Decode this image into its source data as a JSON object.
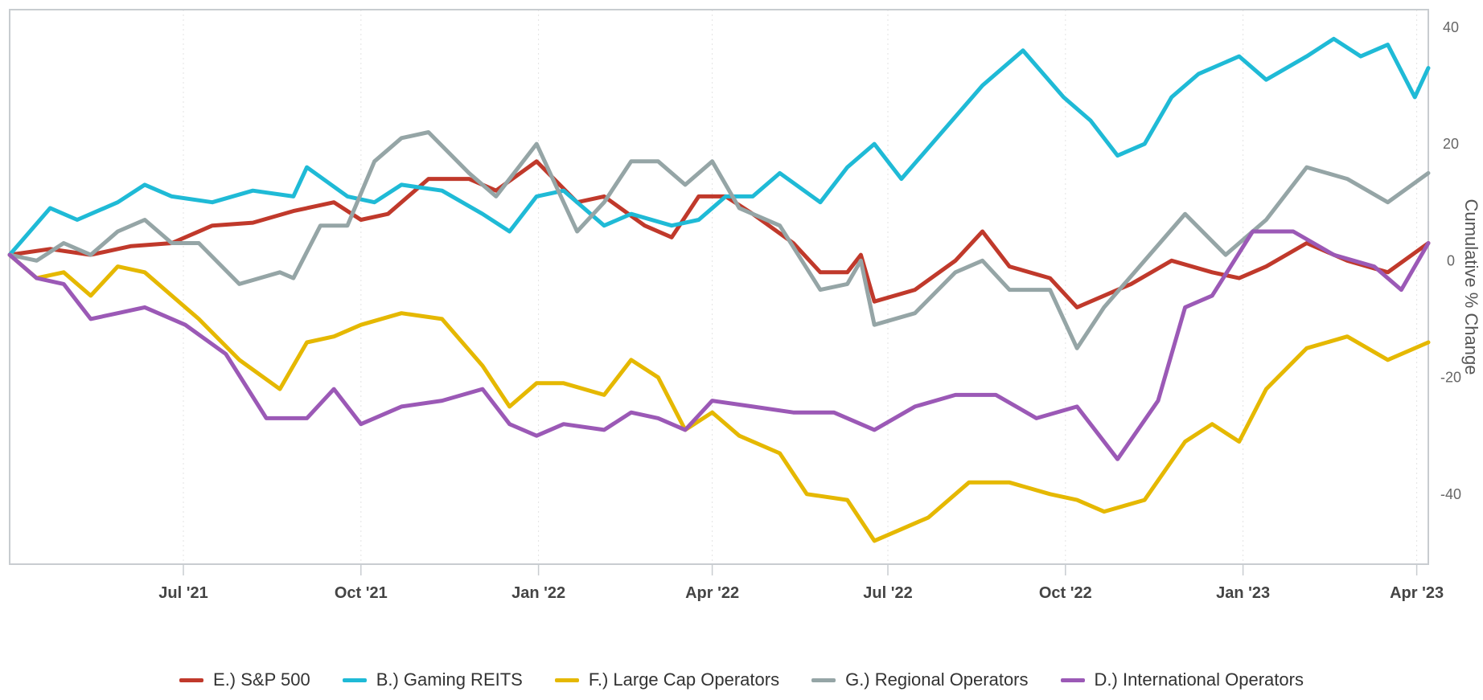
{
  "chart_data": {
    "type": "line",
    "title": "",
    "xlabel": "",
    "ylabel": "Cumulative % Change",
    "ylim": [
      -52,
      43
    ],
    "xlim": [
      "2021-04-02",
      "2023-04-07"
    ],
    "y_axis_position": "right",
    "yticks": [
      40,
      20,
      0,
      -20,
      -40
    ],
    "ytick_labels": [
      "40",
      "20",
      "0",
      "-20",
      "-40"
    ],
    "xticks": [
      {
        "label": "Jul '21",
        "date": "2021-07-01"
      },
      {
        "label": "Oct '21",
        "date": "2021-10-01"
      },
      {
        "label": "Jan '22",
        "date": "2022-01-01"
      },
      {
        "label": "Apr '22",
        "date": "2022-04-01"
      },
      {
        "label": "Jul '22",
        "date": "2022-07-01"
      },
      {
        "label": "Oct '22",
        "date": "2022-10-01"
      },
      {
        "label": "Jan '23",
        "date": "2023-01-01"
      },
      {
        "label": "Apr '23",
        "date": "2023-04-01"
      }
    ],
    "grid": "vertical dotted at x ticks",
    "legend_position": "bottom",
    "series": [
      {
        "name": "E.) S&P 500",
        "color": "#c0392b",
        "points": [
          [
            "2021-04-02",
            1
          ],
          [
            "2021-04-23",
            2
          ],
          [
            "2021-05-14",
            1
          ],
          [
            "2021-06-04",
            2.5
          ],
          [
            "2021-06-25",
            3
          ],
          [
            "2021-07-16",
            6
          ],
          [
            "2021-08-06",
            6.5
          ],
          [
            "2021-08-27",
            8.5
          ],
          [
            "2021-09-17",
            10
          ],
          [
            "2021-10-01",
            7
          ],
          [
            "2021-10-15",
            8
          ],
          [
            "2021-11-05",
            14
          ],
          [
            "2021-11-26",
            14
          ],
          [
            "2021-12-10",
            12
          ],
          [
            "2021-12-31",
            17
          ],
          [
            "2022-01-21",
            10
          ],
          [
            "2022-02-04",
            11
          ],
          [
            "2022-02-25",
            6
          ],
          [
            "2022-03-11",
            4
          ],
          [
            "2022-03-25",
            11
          ],
          [
            "2022-04-08",
            11
          ],
          [
            "2022-04-22",
            8
          ],
          [
            "2022-05-13",
            3
          ],
          [
            "2022-05-27",
            -2
          ],
          [
            "2022-06-10",
            -2
          ],
          [
            "2022-06-17",
            1
          ],
          [
            "2022-06-24",
            -7
          ],
          [
            "2022-07-15",
            -5
          ],
          [
            "2022-08-05",
            0
          ],
          [
            "2022-08-19",
            5
          ],
          [
            "2022-09-02",
            -1
          ],
          [
            "2022-09-23",
            -3
          ],
          [
            "2022-10-07",
            -8
          ],
          [
            "2022-10-21",
            -6
          ],
          [
            "2022-11-04",
            -4
          ],
          [
            "2022-11-25",
            0
          ],
          [
            "2022-12-16",
            -2
          ],
          [
            "2022-12-30",
            -3
          ],
          [
            "2023-01-13",
            -1
          ],
          [
            "2023-02-03",
            3
          ],
          [
            "2023-02-24",
            0
          ],
          [
            "2023-03-17",
            -2
          ],
          [
            "2023-04-07",
            3
          ]
        ]
      },
      {
        "name": "B.) Gaming REITS",
        "color": "#1fbad6",
        "points": [
          [
            "2021-04-02",
            1
          ],
          [
            "2021-04-23",
            9
          ],
          [
            "2021-05-07",
            7
          ],
          [
            "2021-05-28",
            10
          ],
          [
            "2021-06-11",
            13
          ],
          [
            "2021-06-25",
            11
          ],
          [
            "2021-07-16",
            10
          ],
          [
            "2021-08-06",
            12
          ],
          [
            "2021-08-27",
            11
          ],
          [
            "2021-09-03",
            16
          ],
          [
            "2021-09-24",
            11
          ],
          [
            "2021-10-08",
            10
          ],
          [
            "2021-10-22",
            13
          ],
          [
            "2021-11-12",
            12
          ],
          [
            "2021-12-03",
            8
          ],
          [
            "2021-12-17",
            5
          ],
          [
            "2021-12-31",
            11
          ],
          [
            "2022-01-14",
            12
          ],
          [
            "2022-02-04",
            6
          ],
          [
            "2022-02-18",
            8
          ],
          [
            "2022-03-11",
            6
          ],
          [
            "2022-03-25",
            7
          ],
          [
            "2022-04-08",
            11
          ],
          [
            "2022-04-22",
            11
          ],
          [
            "2022-05-06",
            15
          ],
          [
            "2022-05-27",
            10
          ],
          [
            "2022-06-10",
            16
          ],
          [
            "2022-06-24",
            20
          ],
          [
            "2022-07-08",
            14
          ],
          [
            "2022-07-29",
            22
          ],
          [
            "2022-08-19",
            30
          ],
          [
            "2022-09-09",
            36
          ],
          [
            "2022-09-30",
            28
          ],
          [
            "2022-10-14",
            24
          ],
          [
            "2022-10-28",
            18
          ],
          [
            "2022-11-11",
            20
          ],
          [
            "2022-11-25",
            28
          ],
          [
            "2022-12-09",
            32
          ],
          [
            "2022-12-30",
            35
          ],
          [
            "2023-01-13",
            31
          ],
          [
            "2023-02-03",
            35
          ],
          [
            "2023-02-17",
            38
          ],
          [
            "2023-03-03",
            35
          ],
          [
            "2023-03-17",
            37
          ],
          [
            "2023-03-31",
            28
          ],
          [
            "2023-04-07",
            33
          ]
        ]
      },
      {
        "name": "F.) Large Cap Operators",
        "color": "#e5b800",
        "points": [
          [
            "2021-04-02",
            1
          ],
          [
            "2021-04-16",
            -3
          ],
          [
            "2021-04-30",
            -2
          ],
          [
            "2021-05-14",
            -6
          ],
          [
            "2021-05-28",
            -1
          ],
          [
            "2021-06-11",
            -2
          ],
          [
            "2021-06-25",
            -6
          ],
          [
            "2021-07-09",
            -10
          ],
          [
            "2021-07-30",
            -17
          ],
          [
            "2021-08-20",
            -22
          ],
          [
            "2021-09-03",
            -14
          ],
          [
            "2021-09-17",
            -13
          ],
          [
            "2021-10-01",
            -11
          ],
          [
            "2021-10-22",
            -9
          ],
          [
            "2021-11-12",
            -10
          ],
          [
            "2021-12-03",
            -18
          ],
          [
            "2021-12-17",
            -25
          ],
          [
            "2021-12-31",
            -21
          ],
          [
            "2022-01-14",
            -21
          ],
          [
            "2022-02-04",
            -23
          ],
          [
            "2022-02-18",
            -17
          ],
          [
            "2022-03-04",
            -20
          ],
          [
            "2022-03-18",
            -29
          ],
          [
            "2022-04-01",
            -26
          ],
          [
            "2022-04-15",
            -30
          ],
          [
            "2022-05-06",
            -33
          ],
          [
            "2022-05-20",
            -40
          ],
          [
            "2022-06-10",
            -41
          ],
          [
            "2022-06-24",
            -48
          ],
          [
            "2022-07-08",
            -46
          ],
          [
            "2022-07-22",
            -44
          ],
          [
            "2022-08-12",
            -38
          ],
          [
            "2022-09-02",
            -38
          ],
          [
            "2022-09-23",
            -40
          ],
          [
            "2022-10-07",
            -41
          ],
          [
            "2022-10-21",
            -43
          ],
          [
            "2022-11-11",
            -41
          ],
          [
            "2022-12-02",
            -31
          ],
          [
            "2022-12-16",
            -28
          ],
          [
            "2022-12-30",
            -31
          ],
          [
            "2023-01-13",
            -22
          ],
          [
            "2023-02-03",
            -15
          ],
          [
            "2023-02-24",
            -13
          ],
          [
            "2023-03-17",
            -17
          ],
          [
            "2023-04-07",
            -14
          ]
        ]
      },
      {
        "name": "G.) Regional Operators",
        "color": "#95a5a6",
        "points": [
          [
            "2021-04-02",
            1
          ],
          [
            "2021-04-16",
            0
          ],
          [
            "2021-04-30",
            3
          ],
          [
            "2021-05-14",
            1
          ],
          [
            "2021-05-28",
            5
          ],
          [
            "2021-06-11",
            7
          ],
          [
            "2021-06-25",
            3
          ],
          [
            "2021-07-09",
            3
          ],
          [
            "2021-07-30",
            -4
          ],
          [
            "2021-08-20",
            -2
          ],
          [
            "2021-08-27",
            -3
          ],
          [
            "2021-09-10",
            6
          ],
          [
            "2021-09-24",
            6
          ],
          [
            "2021-10-08",
            17
          ],
          [
            "2021-10-22",
            21
          ],
          [
            "2021-11-05",
            22
          ],
          [
            "2021-11-26",
            15
          ],
          [
            "2021-12-10",
            11
          ],
          [
            "2021-12-31",
            20
          ],
          [
            "2022-01-21",
            5
          ],
          [
            "2022-02-04",
            10
          ],
          [
            "2022-02-18",
            17
          ],
          [
            "2022-03-04",
            17
          ],
          [
            "2022-03-18",
            13
          ],
          [
            "2022-04-01",
            17
          ],
          [
            "2022-04-15",
            9
          ],
          [
            "2022-05-06",
            6
          ],
          [
            "2022-05-27",
            -5
          ],
          [
            "2022-06-10",
            -4
          ],
          [
            "2022-06-17",
            0
          ],
          [
            "2022-06-24",
            -11
          ],
          [
            "2022-07-15",
            -9
          ],
          [
            "2022-08-05",
            -2
          ],
          [
            "2022-08-19",
            0
          ],
          [
            "2022-09-02",
            -5
          ],
          [
            "2022-09-23",
            -5
          ],
          [
            "2022-10-07",
            -15
          ],
          [
            "2022-10-21",
            -8
          ],
          [
            "2022-11-11",
            0
          ],
          [
            "2022-12-02",
            8
          ],
          [
            "2022-12-23",
            1
          ],
          [
            "2023-01-13",
            7
          ],
          [
            "2023-02-03",
            16
          ],
          [
            "2023-02-24",
            14
          ],
          [
            "2023-03-17",
            10
          ],
          [
            "2023-04-07",
            15
          ]
        ]
      },
      {
        "name": "D.) International Operators",
        "color": "#9b59b6",
        "points": [
          [
            "2021-04-02",
            1
          ],
          [
            "2021-04-16",
            -3
          ],
          [
            "2021-04-30",
            -4
          ],
          [
            "2021-05-14",
            -10
          ],
          [
            "2021-05-28",
            -9
          ],
          [
            "2021-06-11",
            -8
          ],
          [
            "2021-07-02",
            -11
          ],
          [
            "2021-07-23",
            -16
          ],
          [
            "2021-08-13",
            -27
          ],
          [
            "2021-09-03",
            -27
          ],
          [
            "2021-09-17",
            -22
          ],
          [
            "2021-10-01",
            -28
          ],
          [
            "2021-10-22",
            -25
          ],
          [
            "2021-11-12",
            -24
          ],
          [
            "2021-12-03",
            -22
          ],
          [
            "2021-12-17",
            -28
          ],
          [
            "2021-12-31",
            -30
          ],
          [
            "2022-01-14",
            -28
          ],
          [
            "2022-02-04",
            -29
          ],
          [
            "2022-02-18",
            -26
          ],
          [
            "2022-03-04",
            -27
          ],
          [
            "2022-03-18",
            -29
          ],
          [
            "2022-04-01",
            -24
          ],
          [
            "2022-04-22",
            -25
          ],
          [
            "2022-05-13",
            -26
          ],
          [
            "2022-06-03",
            -26
          ],
          [
            "2022-06-24",
            -29
          ],
          [
            "2022-07-15",
            -25
          ],
          [
            "2022-08-05",
            -23
          ],
          [
            "2022-08-26",
            -23
          ],
          [
            "2022-09-16",
            -27
          ],
          [
            "2022-10-07",
            -25
          ],
          [
            "2022-10-28",
            -34
          ],
          [
            "2022-11-18",
            -24
          ],
          [
            "2022-12-02",
            -8
          ],
          [
            "2022-12-16",
            -6
          ],
          [
            "2023-01-06",
            5
          ],
          [
            "2023-01-27",
            5
          ],
          [
            "2023-02-17",
            1
          ],
          [
            "2023-03-10",
            -1
          ],
          [
            "2023-03-24",
            -5
          ],
          [
            "2023-04-07",
            3
          ]
        ]
      }
    ]
  }
}
